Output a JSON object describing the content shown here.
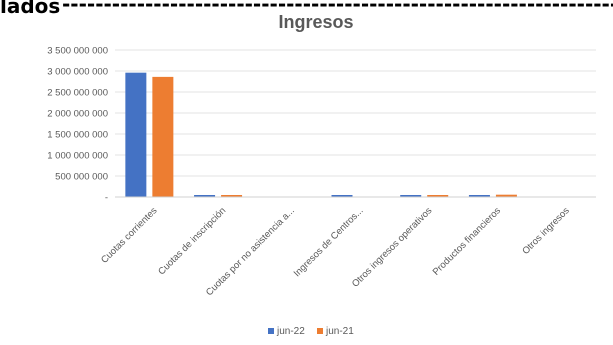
{
  "header": {
    "fragment": "lados"
  },
  "chart_data": {
    "type": "bar",
    "title": "Ingresos",
    "categories": [
      "Cuotas corrientes",
      "Cuotas de inscripción",
      "Cuotas por no asistencia a...",
      "Ingresos de Centros...",
      "Otros ingresos operativos",
      "Productos financieros",
      "Otros ingresos"
    ],
    "series": [
      {
        "name": "jun-22",
        "color": "#4472c4",
        "values": [
          2960000000,
          45000000,
          0,
          20000000,
          15000000,
          40000000,
          0
        ]
      },
      {
        "name": "jun-21",
        "color": "#ed7d31",
        "values": [
          2860000000,
          35000000,
          0,
          0,
          18000000,
          55000000,
          0
        ]
      }
    ],
    "ylim": [
      0,
      3500000000
    ],
    "yticks": [
      {
        "value": 0,
        "label": "-"
      },
      {
        "value": 500000000,
        "label": "500 000 000"
      },
      {
        "value": 1000000000,
        "label": "1 000 000 000"
      },
      {
        "value": 1500000000,
        "label": "1 500 000 000"
      },
      {
        "value": 2000000000,
        "label": "2 000 000 000"
      },
      {
        "value": 2500000000,
        "label": "2 500 000 000"
      },
      {
        "value": 3000000000,
        "label": "3 000 000 000"
      },
      {
        "value": 3500000000,
        "label": "3 500 000 000"
      }
    ],
    "grid": true,
    "legend_position": "bottom"
  }
}
